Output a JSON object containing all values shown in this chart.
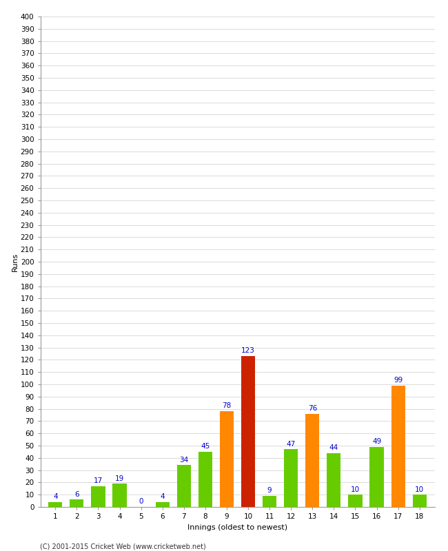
{
  "title": "",
  "xlabel": "Innings (oldest to newest)",
  "ylabel": "Runs",
  "categories": [
    "1",
    "2",
    "3",
    "4",
    "5",
    "6",
    "7",
    "8",
    "9",
    "10",
    "11",
    "12",
    "13",
    "14",
    "15",
    "16",
    "17",
    "18"
  ],
  "values": [
    4,
    6,
    17,
    19,
    0,
    4,
    34,
    45,
    78,
    123,
    9,
    47,
    76,
    44,
    10,
    49,
    99,
    10
  ],
  "bar_colors": [
    "#66cc00",
    "#66cc00",
    "#66cc00",
    "#66cc00",
    "#66cc00",
    "#66cc00",
    "#66cc00",
    "#66cc00",
    "#ff8800",
    "#cc2200",
    "#66cc00",
    "#66cc00",
    "#ff8800",
    "#66cc00",
    "#66cc00",
    "#66cc00",
    "#ff8800",
    "#66cc00"
  ],
  "ylim": [
    0,
    400
  ],
  "ytick_step": 10,
  "background_color": "#ffffff",
  "grid_color": "#cccccc",
  "label_color": "#0000cc",
  "footer": "(C) 2001-2015 Cricket Web (www.cricketweb.net)",
  "label_fontsize": 7.5,
  "tick_fontsize": 7.5,
  "axis_label_fontsize": 8,
  "footer_fontsize": 7
}
